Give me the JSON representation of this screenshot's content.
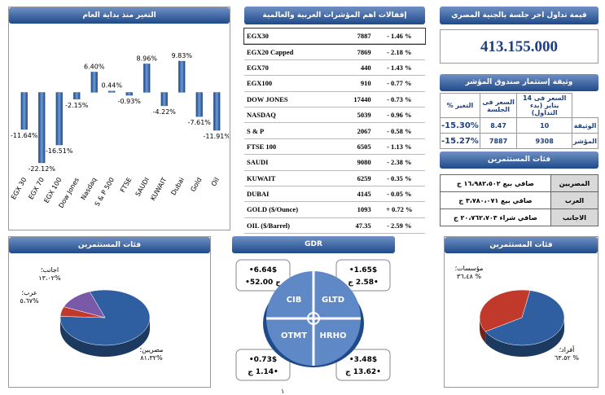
{
  "chart_data": [
    {
      "type": "bar",
      "title": "التغير منذ بداية العام",
      "categories": [
        "EGX 30",
        "EGX 70",
        "EGX 100",
        "Dow Jones",
        "Nasdaq",
        "S & P 500",
        "FTSE",
        "SAUDI",
        "KUWAIT",
        "Dubai",
        "Gold",
        "Oil"
      ],
      "values": [
        -11.64,
        -22.12,
        -16.51,
        -2.15,
        6.4,
        0.44,
        -0.93,
        8.96,
        -4.22,
        9.83,
        -7.61,
        -11.91
      ],
      "value_labels": [
        "-11.64%",
        "-22.12%",
        "-16.51%",
        "-2.15%",
        "6.40%",
        "0.44%",
        "-0.93%",
        "8.96%",
        "-4.22%",
        "9.83%",
        "-7.61%",
        "-11.91%"
      ],
      "color": "#2b5a9b"
    },
    {
      "type": "pie",
      "title": "فئات المستثمرين",
      "categories": [
        "مصريين؛",
        "عرب؛",
        "اجانب؛"
      ],
      "values": [
        81.32,
        5.67,
        13.02
      ],
      "value_labels": [
        "٨١،٣٢%",
        "٥،٦٧%",
        "١٣،٠٢%"
      ],
      "colors": [
        "#2f5fa0",
        "#c0392b",
        "#7a5aa8"
      ]
    },
    {
      "type": "pie",
      "title": "فئات المستثمرين",
      "categories": [
        "أفراد؛",
        "مؤسسات؛"
      ],
      "values": [
        63.52,
        36.48
      ],
      "value_labels": [
        "٦٣،٥٢ %",
        "٣٦،٤٨ %"
      ],
      "colors": [
        "#2f5fa0",
        "#c0392b"
      ]
    }
  ],
  "closing_table": {
    "title": "إقفالات اهم المؤشرات العربية والعالمية",
    "rows": [
      [
        "EGX30",
        "7887",
        "- 1.46 %"
      ],
      [
        "EGX20 Capped",
        "7869",
        "- 2.18 %"
      ],
      [
        "EGX70",
        "440",
        "- 1.43 %"
      ],
      [
        "EGX100",
        "910",
        "- 0.77 %"
      ],
      [
        "DOW JONES",
        "17440",
        "- 0.73 %"
      ],
      [
        "NASDAQ",
        "5039",
        "- 0.96 %"
      ],
      [
        "S & P",
        "2067",
        "- 0.58 %"
      ],
      [
        "FTSE 100",
        "6505",
        "- 1.13 %"
      ],
      [
        "SAUDI",
        "9080",
        "- 2.38 %"
      ],
      [
        "KUWAIT",
        "6259",
        "- 0.35 %"
      ],
      [
        "DUBAI",
        "4145",
        "- 0.05 %"
      ],
      [
        "GOLD ($/Ounce)",
        "1093",
        "+ 0.72 %"
      ],
      [
        "OIL ($/Barrel)",
        "47.35",
        "- 2.59 %"
      ]
    ]
  },
  "trading_value": {
    "title": "قيمة تداول اخر جلسة بالجنية المصري",
    "value": "413.155.000"
  },
  "fund": {
    "title": "وثيقة إستثمار صندوق المؤشر",
    "columns": [
      "السعر فى 14 يناير (بدء التداول)",
      "السعر فى الجلسة",
      "التغير %"
    ],
    "rows": [
      {
        "label": "الوثيقة",
        "values": [
          "10",
          "8.47",
          "-15.30%"
        ]
      },
      {
        "label": "المؤشر",
        "values": [
          "9308",
          "7887",
          "-15.27%"
        ]
      }
    ]
  },
  "investors": {
    "title": "فئات المستثمرين",
    "rows": [
      {
        "label": "المصريين",
        "value": "صافي بيع ١٦،٩٨٢،٥٠٢ ج"
      },
      {
        "label": "العرب",
        "value": "صافي بيع ٣،٧٨٠،٠٧١ ج"
      },
      {
        "label": "الاجانب",
        "value": "صافي شراء ٢٠،٧٦٢،٧٠٣ ج"
      }
    ]
  },
  "gdr": {
    "title": "GDR",
    "items": [
      {
        "name": "CIB",
        "usd": "•6.64$",
        "egp": "•52.00 ج"
      },
      {
        "name": "GLTD",
        "usd": "•1.65$",
        "egp": "ج 2.58•"
      },
      {
        "name": "OTMT",
        "usd": "•0.73$",
        "egp": "ج 1.14•"
      },
      {
        "name": "HRHO",
        "usd": "•3.48$",
        "egp": "ج 13.62•"
      }
    ]
  },
  "page_number": "١"
}
